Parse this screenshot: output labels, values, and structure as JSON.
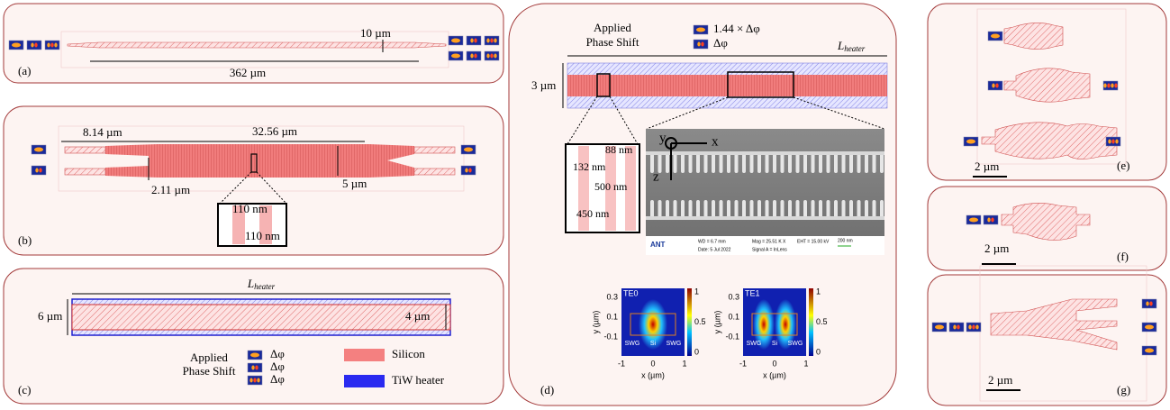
{
  "panels": {
    "a": {
      "label": "(a)",
      "width": "10 µm",
      "length": "362 µm"
    },
    "b": {
      "label": "(b)",
      "taper_width": "8.14 µm",
      "length": "32.56 µm",
      "gap": "2.11 µm",
      "width": "5 µm",
      "inset_pitch": "110 nm",
      "inset_gap": "110 nm"
    },
    "c": {
      "label": "(c)",
      "length": {
        "main": "L",
        "sub": "heater"
      },
      "outer_width": "6 µm",
      "inner_width": "4 µm",
      "phase_title": [
        "Applied",
        "Phase Shift"
      ],
      "phase_shifts": [
        "Δφ",
        "Δφ",
        "Δφ"
      ],
      "legend": [
        "Silicon",
        "TiW heater"
      ]
    },
    "d": {
      "label": "(d)",
      "phase_title": [
        "Applied",
        "Phase Shift"
      ],
      "phase_shifts": [
        "1.44 × Δφ",
        "Δφ"
      ],
      "length": {
        "main": "L",
        "sub": "heater"
      },
      "width": "3 µm",
      "inset": [
        "88 nm",
        "132 nm",
        "500 nm",
        "450 nm"
      ],
      "axes": [
        "y",
        "x",
        "z"
      ],
      "sem": {
        "brand": "ANT",
        "wd": "WD = 6.7 mm",
        "mag": "Mag = 25.51 K X",
        "eht": "EHT = 15.00 kV",
        "date": "Date: 5 Jul 2022",
        "signal": "Signal A = InLens",
        "scale": "200 nm"
      },
      "modes": [
        {
          "title": "TE0"
        },
        {
          "title": "TE1"
        }
      ],
      "mode_axes": {
        "ylabel": "y (µm)",
        "xlabel": "x (µm)",
        "yticks": [
          0.3,
          0.1,
          -0.1
        ],
        "xticks": [
          -1,
          0,
          1
        ],
        "cbar_ticks": [
          1,
          0.5,
          0
        ],
        "regions": [
          "SWG",
          "Si",
          "SWG"
        ]
      }
    },
    "e": {
      "label": "(e)",
      "scale": "2 µm"
    },
    "f": {
      "label": "(f)",
      "scale": "2 µm"
    },
    "g": {
      "label": "(g)",
      "scale": "2 µm"
    }
  }
}
